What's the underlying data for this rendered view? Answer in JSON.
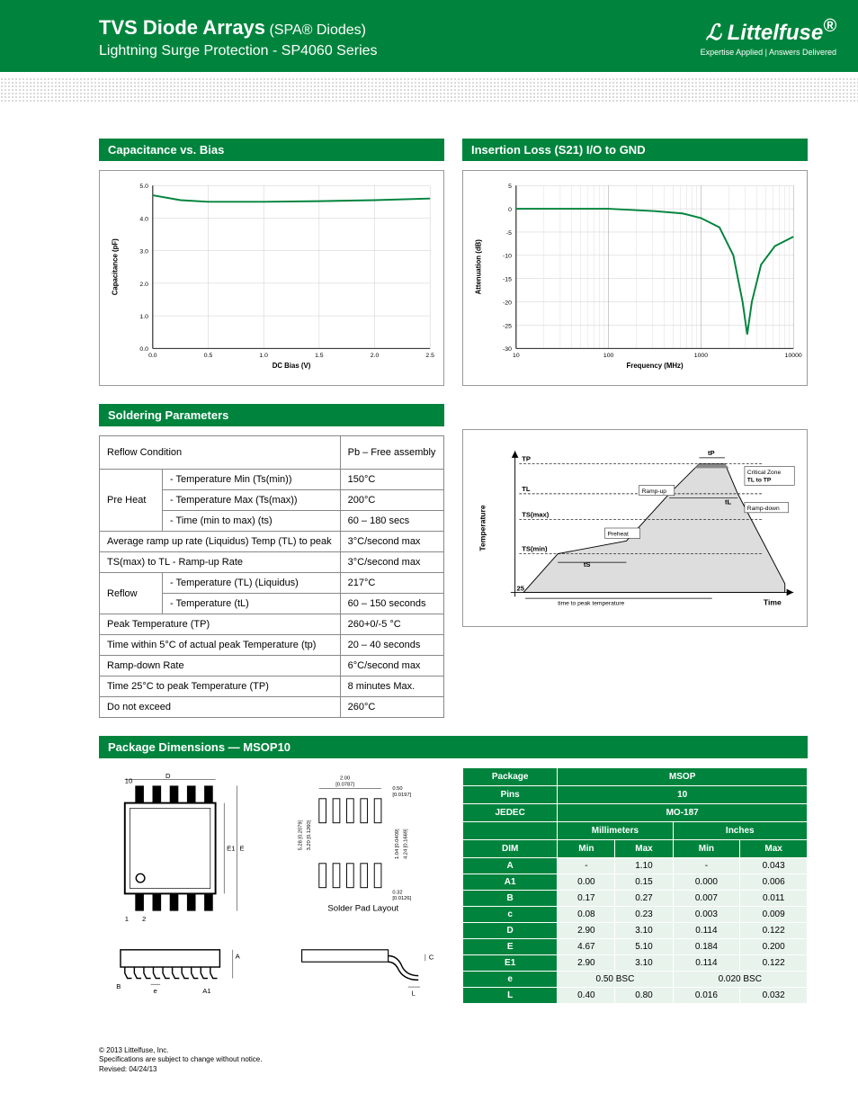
{
  "header": {
    "title_main": "TVS Diode Arrays",
    "title_sub": "(SPA® Diodes)",
    "subtitle": "Lightning Surge Protection - SP4060 Series",
    "logo_name": "Littelfuse",
    "logo_tag": "Expertise Applied | Answers Delivered"
  },
  "chart1": {
    "title": "Capacitance vs. Bias",
    "xlabel": "DC Bias (V)",
    "ylabel": "Capacitance (pF)",
    "xticks": [
      "0.0",
      "0.5",
      "1.0",
      "1.5",
      "2.0",
      "2.5"
    ],
    "yticks": [
      "0.0",
      "1.0",
      "2.0",
      "3.0",
      "4.0",
      "5.0"
    ],
    "line_color": "#00843d",
    "points": [
      [
        0,
        4.7
      ],
      [
        0.25,
        4.55
      ],
      [
        0.5,
        4.5
      ],
      [
        1.0,
        4.5
      ],
      [
        1.5,
        4.52
      ],
      [
        2.0,
        4.55
      ],
      [
        2.5,
        4.6
      ]
    ]
  },
  "chart2": {
    "title": "Insertion Loss (S21) I/O to GND",
    "xlabel": "Frequency (MHz)",
    "ylabel": "Attenuation (dB)",
    "xticks": [
      "10",
      "100",
      "1000",
      "10000"
    ],
    "yticks": [
      "-30",
      "-25",
      "-20",
      "-15",
      "-10",
      "-5",
      "0",
      "5"
    ],
    "line_color": "#00843d",
    "log_points": [
      [
        1,
        0
      ],
      [
        1.5,
        0
      ],
      [
        2,
        0
      ],
      [
        2.5,
        -0.5
      ],
      [
        2.8,
        -1
      ],
      [
        3.0,
        -2
      ],
      [
        3.2,
        -4
      ],
      [
        3.35,
        -10
      ],
      [
        3.45,
        -20
      ],
      [
        3.5,
        -27
      ],
      [
        3.55,
        -20
      ],
      [
        3.65,
        -12
      ],
      [
        3.8,
        -8
      ],
      [
        4,
        -6
      ]
    ]
  },
  "soldering": {
    "title": "Soldering Parameters",
    "header_col1": "Reflow Condition",
    "header_col2": "Pb – Free assembly",
    "rows": [
      {
        "g": "Pre Heat",
        "l": "- Temperature Min (Ts(min))",
        "v": "150°C"
      },
      {
        "g": "",
        "l": "- Temperature Max (Ts(max))",
        "v": "200°C"
      },
      {
        "g": "",
        "l": "- Time (min to max) (ts)",
        "v": "60 – 180 secs"
      },
      {
        "g": "",
        "l": "Average ramp up rate (Liquidus) Temp (TL) to peak",
        "v": "3°C/second max"
      },
      {
        "g": "",
        "l": "TS(max) to TL - Ramp-up Rate",
        "v": "3°C/second max"
      },
      {
        "g": "Reflow",
        "l": "- Temperature (TL) (Liquidus)",
        "v": "217°C"
      },
      {
        "g": "",
        "l": "- Temperature (tL)",
        "v": "60 – 150 seconds"
      },
      {
        "g": "",
        "l": "Peak Temperature (TP)",
        "v": "260+0/-5 °C"
      },
      {
        "g": "",
        "l": "Time within 5°C of actual peak Temperature (tp)",
        "v": "20 – 40 seconds"
      },
      {
        "g": "",
        "l": "Ramp-down Rate",
        "v": "6°C/second max"
      },
      {
        "g": "",
        "l": "Time 25°C to peak Temperature (TP)",
        "v": "8 minutes Max."
      },
      {
        "g": "",
        "l": "Do not exceed",
        "v": "260°C"
      }
    ]
  },
  "reflow_labels": {
    "ylabel": "Temperature",
    "xlabel": "Time",
    "tp": "TP",
    "tl": "TL",
    "tsmax": "TS(max)",
    "tsmin": "TS(min)",
    "t25": "25",
    "preheat": "Preheat",
    "rampup": "Ramp-up",
    "rampdown": "Ramp-down",
    "critical": "Critical Zone TL to TP",
    "ts_arrow": "tS",
    "tl_arrow": "tL",
    "tp_arrow": "tP",
    "timepeak": "time to peak temperature"
  },
  "pkg": {
    "title": "Package Dimensions — MSOP10",
    "solder_label": "Solder Pad Layout",
    "dim_labels": {
      "d": "D",
      "e1": "E1",
      "e": "E",
      "a": "A",
      "b": "B",
      "a1": "A1",
      "el": "e",
      "c": "C",
      "l": "L",
      "p10": "10",
      "p1": "1",
      "p2": "2"
    },
    "pad_dims": {
      "w": "2.00\n[0.0787]",
      "h1": "0.50\n[0.0197]",
      "h2": "5.28\n[0.2079]",
      "h3": "3.20\n[0.1260]",
      "h4": "4.24\n[0.1669]",
      "h5": "1.04\n[0.0409]",
      "h6": "0.32\n[0.0126]"
    }
  },
  "dims": {
    "headers": {
      "pkg": "Package",
      "pkg_v": "MSOP",
      "pins": "Pins",
      "pins_v": "10",
      "jedec": "JEDEC",
      "jedec_v": "MO-187",
      "mm": "Millimeters",
      "in": "Inches",
      "dim": "DIM",
      "min": "Min",
      "max": "Max"
    },
    "rows": [
      {
        "d": "A",
        "mn": "-",
        "mx": "1.10",
        "in": "-",
        "ix": "0.043"
      },
      {
        "d": "A1",
        "mn": "0.00",
        "mx": "0.15",
        "in": "0.000",
        "ix": "0.006"
      },
      {
        "d": "B",
        "mn": "0.17",
        "mx": "0.27",
        "in": "0.007",
        "ix": "0.011"
      },
      {
        "d": "c",
        "mn": "0.08",
        "mx": "0.23",
        "in": "0.003",
        "ix": "0.009"
      },
      {
        "d": "D",
        "mn": "2.90",
        "mx": "3.10",
        "in": "0.114",
        "ix": "0.122"
      },
      {
        "d": "E",
        "mn": "4.67",
        "mx": "5.10",
        "in": "0.184",
        "ix": "0.200"
      },
      {
        "d": "E1",
        "mn": "2.90",
        "mx": "3.10",
        "in": "0.114",
        "ix": "0.122"
      },
      {
        "d": "e",
        "mn": "0.50 BSC",
        "mx": "",
        "in": "0.020 BSC",
        "ix": ""
      },
      {
        "d": "L",
        "mn": "0.40",
        "mx": "0.80",
        "in": "0.016",
        "ix": "0.032"
      }
    ]
  },
  "footer": {
    "l1": "© 2013 Littelfuse, Inc.",
    "l2": "Specifications are subject to change without notice.",
    "l3": "Revised: 04/24/13"
  }
}
